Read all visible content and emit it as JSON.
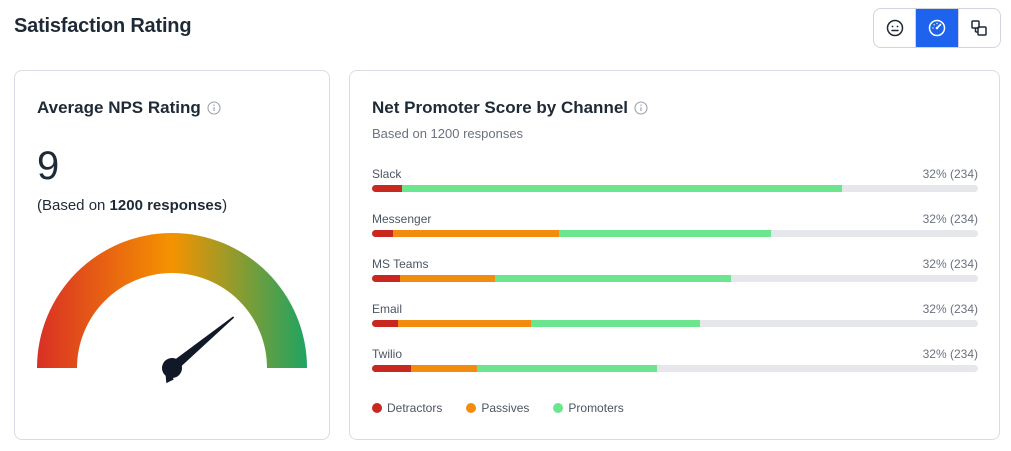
{
  "page": {
    "title": "Satisfaction Rating"
  },
  "view_toggle": [
    {
      "icon": "smiley-icon",
      "active": false
    },
    {
      "icon": "gauge-icon",
      "active": true
    },
    {
      "icon": "shapes-icon",
      "active": false
    }
  ],
  "nps_card": {
    "title": "Average NPS Rating",
    "value": "9",
    "sub_prefix": "(Based on ",
    "sub_bold": "1200 responses",
    "sub_suffix": ")",
    "gauge_level": 0.78,
    "colors": {
      "low": "#d93025",
      "mid": "#f59300",
      "high": "#1ea462"
    }
  },
  "channel_card": {
    "title": "Net Promoter Score by Channel",
    "subtitle": "Based on 1200 responses",
    "channels": [
      {
        "name": "Slack",
        "value": "32% (234)",
        "detractors": 5.0,
        "passives": 0,
        "promoters": 72.6
      },
      {
        "name": "Messenger",
        "value": "32% (234)",
        "detractors": 3.5,
        "passives": 27.4,
        "promoters": 34.9
      },
      {
        "name": "MS Teams",
        "value": "32% (234)",
        "detractors": 4.6,
        "passives": 15.7,
        "promoters": 38.9
      },
      {
        "name": "Email",
        "value": "32% (234)",
        "detractors": 4.3,
        "passives": 21.9,
        "promoters": 27.9
      },
      {
        "name": "Twilio",
        "value": "32% (234)",
        "detractors": 6.4,
        "passives": 10.9,
        "promoters": 29.7
      }
    ],
    "legend": [
      {
        "label": "Detractors",
        "color": "#c8281f"
      },
      {
        "label": "Passives",
        "color": "#f28c0f"
      },
      {
        "label": "Promoters",
        "color": "#6be58e"
      }
    ]
  }
}
